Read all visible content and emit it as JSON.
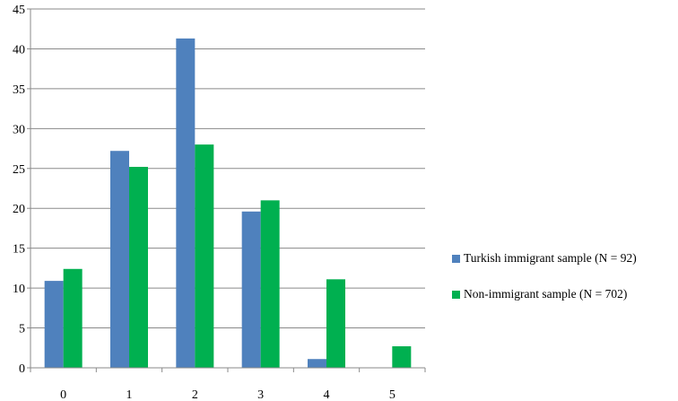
{
  "chart_data": {
    "type": "bar",
    "categories": [
      "0",
      "1",
      "2",
      "3",
      "4",
      "5"
    ],
    "series": [
      {
        "name": "Turkish immigrant sample (N = 92)",
        "color": "#4F81BD",
        "values": [
          10.9,
          27.2,
          41.3,
          19.6,
          1.1,
          0
        ]
      },
      {
        "name": "Non-immigrant sample (N = 702)",
        "color": "#00B050",
        "values": [
          12.4,
          25.2,
          28.0,
          21.0,
          11.1,
          2.7
        ]
      }
    ],
    "title": "",
    "xlabel": "",
    "ylabel": "",
    "ylim": [
      0,
      45
    ],
    "yticks": [
      0,
      5,
      10,
      15,
      20,
      25,
      30,
      35,
      40,
      45
    ],
    "grid": true,
    "legend": "right"
  }
}
